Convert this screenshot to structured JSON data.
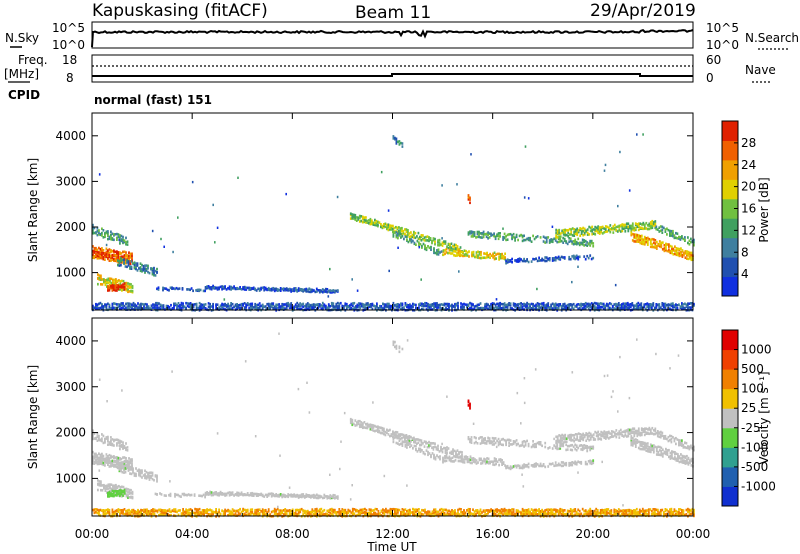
{
  "header": {
    "station": "Kapuskasing (fitACF)",
    "beam": "Beam 11",
    "date": "29/Apr/2019"
  },
  "top_panels": {
    "nsky_label": "N.Sky",
    "nsky_ticks": [
      "10^5",
      "10^0"
    ],
    "nsearch_label": "N.Search",
    "nsearch_ticks": [
      "10^5",
      "10^0"
    ],
    "freq_label": "Freq.",
    "freq_unit": "[MHz]",
    "freq_ticks": [
      "18",
      "8"
    ],
    "nave_label": "Nave",
    "nave_ticks": [
      "60",
      "0"
    ],
    "cpid_label": "CPID",
    "cpid_value": "normal (fast) 151"
  },
  "chart_data": [
    {
      "type": "heatmap",
      "name": "power",
      "ylabel": "Slant Range [km]",
      "xlabel": "",
      "xlim": [
        "00:00",
        "00:00"
      ],
      "ylim": [
        180,
        4500
      ],
      "yticks": [
        "4000",
        "3000",
        "2000",
        "1000"
      ],
      "colorbar_label": "Power [dB]",
      "colorbar_ticks": [
        "28",
        "24",
        "20",
        "16",
        "12",
        "8",
        "4"
      ],
      "colors": [
        "#1030e0",
        "#2050b0",
        "#3f7f9f",
        "#40a060",
        "#70c040",
        "#e0d000",
        "#f0a000",
        "#f06000",
        "#e02000"
      ]
    },
    {
      "type": "heatmap",
      "name": "velocity",
      "ylabel": "Slant Range [km]",
      "xlabel": "Time UT",
      "xticks": [
        "00:00",
        "04:00",
        "08:00",
        "12:00",
        "16:00",
        "20:00",
        "00:00"
      ],
      "ylim": [
        180,
        4500
      ],
      "yticks": [
        "4000",
        "3000",
        "2000",
        "1000"
      ],
      "colorbar_label": "Velocity [m s⁻¹]",
      "colorbar_ticks": [
        "1000",
        "500",
        "100",
        "25",
        "-25",
        "-100",
        "-500",
        "-1000"
      ],
      "colors": [
        "#1030d0",
        "#2060b0",
        "#30a090",
        "#60d040",
        "#c0c0c0",
        "#f0c000",
        "#f08000",
        "#f04000",
        "#e00000"
      ]
    }
  ]
}
